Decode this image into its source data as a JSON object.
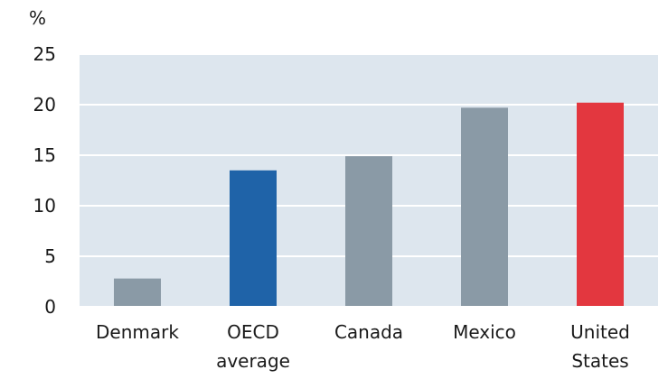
{
  "chart_data": {
    "type": "bar",
    "title": "",
    "xlabel": "",
    "ylabel": "%",
    "ylim": [
      0,
      25
    ],
    "yticks": [
      0,
      5,
      10,
      15,
      20,
      25
    ],
    "grid": true,
    "categories": [
      [
        "Denmark"
      ],
      [
        "OECD",
        "average"
      ],
      [
        "Canada"
      ],
      [
        "Mexico"
      ],
      [
        "United",
        "States"
      ]
    ],
    "values": [
      2.8,
      13.5,
      14.9,
      19.7,
      20.2
    ],
    "colors": [
      "#8a9aa6",
      "#1f63a8",
      "#8a9aa6",
      "#8a9aa6",
      "#e3373f"
    ],
    "plot_background": "#dde6ee",
    "grid_color": "#ffffff"
  }
}
